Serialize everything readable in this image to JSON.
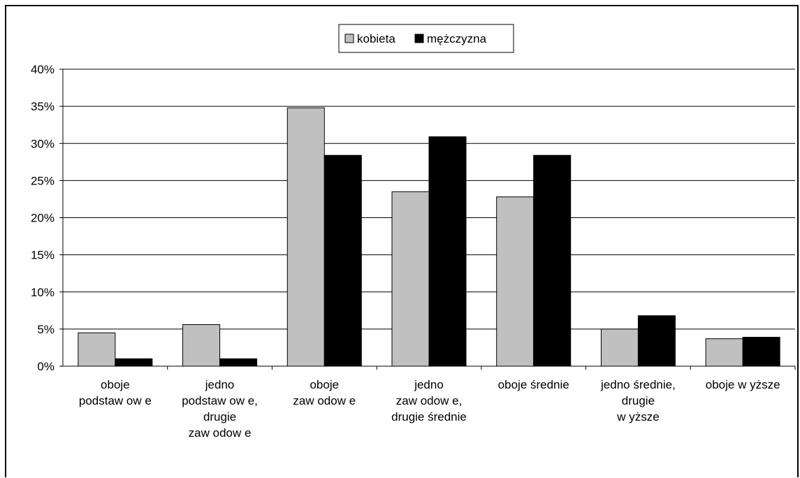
{
  "chart_data": {
    "type": "bar",
    "categories": [
      [
        "oboje",
        "podstaw ow e"
      ],
      [
        "jedno",
        "podstaw ow e,",
        "drugie",
        "zaw odow e"
      ],
      [
        "oboje",
        "zaw odow e"
      ],
      [
        "jedno",
        "zaw odow e,",
        "drugie średnie"
      ],
      [
        "oboje średnie"
      ],
      [
        "jedno średnie,",
        "drugie",
        "w yższe"
      ],
      [
        "oboje w yższe"
      ]
    ],
    "series": [
      {
        "name": "kobieta",
        "values": [
          4.5,
          5.6,
          34.8,
          23.5,
          22.8,
          5.0,
          3.7
        ],
        "color": "#c0c0c0"
      },
      {
        "name": "mężczyzna",
        "values": [
          1.0,
          1.0,
          28.4,
          30.9,
          28.4,
          6.8,
          3.9
        ],
        "color": "#000000"
      }
    ],
    "yticks": [
      "0%",
      "5%",
      "10%",
      "15%",
      "20%",
      "25%",
      "30%",
      "35%",
      "40%"
    ],
    "ylim": [
      0,
      40
    ],
    "grid": true,
    "legend_position": "top-center",
    "title": "",
    "xlabel": "",
    "ylabel": ""
  }
}
